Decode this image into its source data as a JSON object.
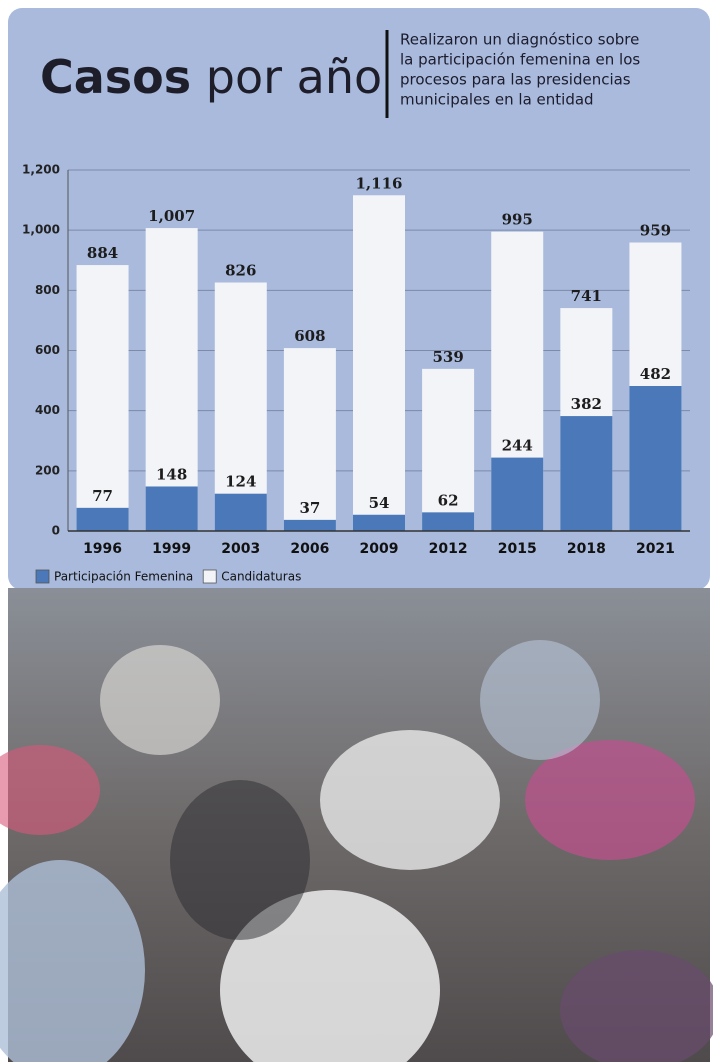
{
  "chart_data": {
    "type": "bar",
    "title": "Casos por año",
    "subtitle": [
      "Realizaron un diagnóstico sobre",
      "la participación femenina en los",
      "procesos para las presidencias",
      "municipales en la entidad"
    ],
    "categories": [
      "1996",
      "1999",
      "2003",
      "2006",
      "2009",
      "2012",
      "2015",
      "2018",
      "2021"
    ],
    "series": [
      {
        "name": "Candidaturas",
        "color": "#f3f4f8",
        "values": [
          884,
          1007,
          826,
          608,
          1116,
          539,
          995,
          741,
          959
        ],
        "value_labels": [
          "884",
          "1,007",
          "826",
          "608",
          "1,116",
          "539",
          "995",
          "741",
          "959"
        ]
      },
      {
        "name": "Participación Femenina",
        "color": "#4a78b8",
        "values": [
          77,
          148,
          124,
          37,
          54,
          62,
          244,
          382,
          482
        ]
      }
    ],
    "legend_order": [
      1,
      0
    ],
    "ylim": [
      0,
      1200
    ],
    "yticks": [
      0,
      200,
      400,
      600,
      800,
      {
        "value": 1000,
        "label": "1,000"
      },
      {
        "value": 1200,
        "label": "1,200"
      }
    ],
    "grid": true
  }
}
